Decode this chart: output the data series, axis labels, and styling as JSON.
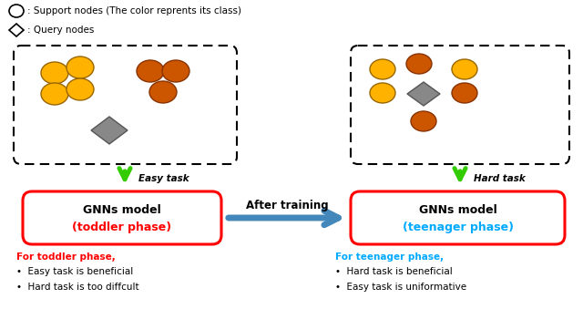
{
  "bg_color": "#ffffff",
  "yellow_color": "#FFB300",
  "orange_color": "#CC5500",
  "gray_color": "#888888",
  "support_text": ": Support nodes (The color reprents its class)",
  "query_text": ": Query nodes",
  "easy_task_label": "Easy task",
  "hard_task_label": "Hard task",
  "after_training_label": "After training",
  "gnn_left_line1": "GNNs model",
  "gnn_left_line2": "(toddler phase)",
  "gnn_right_line1": "GNNs model",
  "gnn_right_line2": "(teenager phase)",
  "toddler_color": "#FF0000",
  "teenager_color": "#00AAFF",
  "bullet_left_title": "For toddler phase,",
  "bullet_left1": "•  Easy task is beneficial",
  "bullet_left2": "•  Hard task is too diffcult",
  "bullet_right_title": "For teenager phase,",
  "bullet_right1": "•  Hard task is beneficial",
  "bullet_right2": "•  Easy task is uniformative",
  "green_arrow_color": "#33CC00",
  "blue_arrow_color": "#4488BB"
}
